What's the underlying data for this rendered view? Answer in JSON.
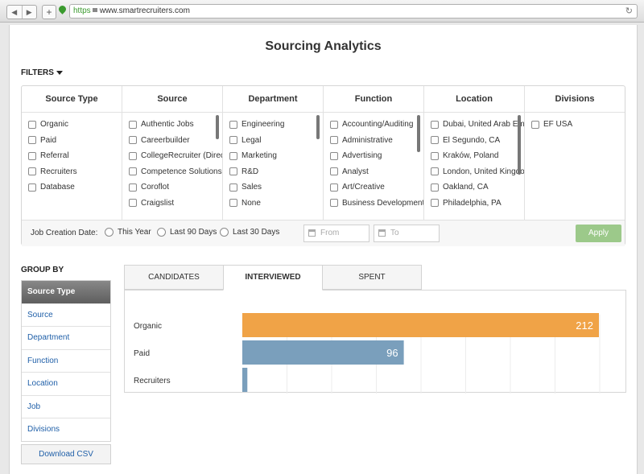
{
  "browser": {
    "url_scheme": "https",
    "url_host": "www.smartrecruiters.com",
    "back_glyph": "◀",
    "forward_glyph": "▶",
    "new_tab_glyph": "+",
    "reload_glyph": "↻",
    "icons": [
      "back-icon",
      "forward-icon",
      "plus-icon",
      "location-pin-icon",
      "lock-icon",
      "reload-icon"
    ]
  },
  "page": {
    "title": "Sourcing Analytics",
    "filters_label": "FILTERS",
    "group_by_label": "GROUP BY",
    "download_label": "Download CSV"
  },
  "filter_columns": [
    {
      "header": "Source Type",
      "options": [
        "Organic",
        "Paid",
        "Referral",
        "Recruiters",
        "Database"
      ]
    },
    {
      "header": "Source",
      "options": [
        "Authentic Jobs",
        "Careerbuilder",
        "CollegeRecruiter (Direc",
        "Competence Solutions",
        "Coroflot",
        "Craigslist"
      ]
    },
    {
      "header": "Department",
      "options": [
        "Engineering",
        "Legal",
        "Marketing",
        "R&D",
        "Sales",
        "None"
      ]
    },
    {
      "header": "Function",
      "options": [
        "Accounting/Auditing",
        "Administrative",
        "Advertising",
        "Analyst",
        "Art/Creative",
        "Business Development"
      ]
    },
    {
      "header": "Location",
      "options": [
        "Dubai, United Arab Em",
        "El Segundo, CA",
        "Kraków, Poland",
        "London, United Kingdo",
        "Oakland, CA",
        "Philadelphia, PA"
      ]
    },
    {
      "header": "Divisions",
      "options": [
        "EF USA"
      ]
    }
  ],
  "date_filter": {
    "label": "Job Creation Date:",
    "radios": [
      "This Year",
      "Last 90 Days",
      "Last 30 Days"
    ],
    "from_placeholder": "From",
    "to_placeholder": "To",
    "apply_label": "Apply"
  },
  "group_by_items": [
    {
      "label": "Source Type",
      "active": true
    },
    {
      "label": "Source",
      "active": false
    },
    {
      "label": "Department",
      "active": false
    },
    {
      "label": "Function",
      "active": false
    },
    {
      "label": "Location",
      "active": false
    },
    {
      "label": "Job",
      "active": false
    },
    {
      "label": "Divisions",
      "active": false
    }
  ],
  "tabs": [
    {
      "label": "CANDIDATES",
      "active": false
    },
    {
      "label": "INTERVIEWED",
      "active": true
    },
    {
      "label": "SPENT",
      "active": false
    }
  ],
  "colors": {
    "accent_orange": "#f0a347",
    "bar_blue": "#7a9fbc",
    "link_blue": "#1f5fa8",
    "apply_green": "#9cc98a"
  },
  "chart_data": {
    "type": "bar",
    "orientation": "horizontal",
    "categories": [
      "Organic",
      "Paid",
      "Recruiters"
    ],
    "values": [
      212,
      96,
      3
    ],
    "bar_colors": [
      "#f0a347",
      "#7a9fbc",
      "#7a9fbc"
    ],
    "xlim": [
      0,
      212
    ],
    "grid": true
  }
}
